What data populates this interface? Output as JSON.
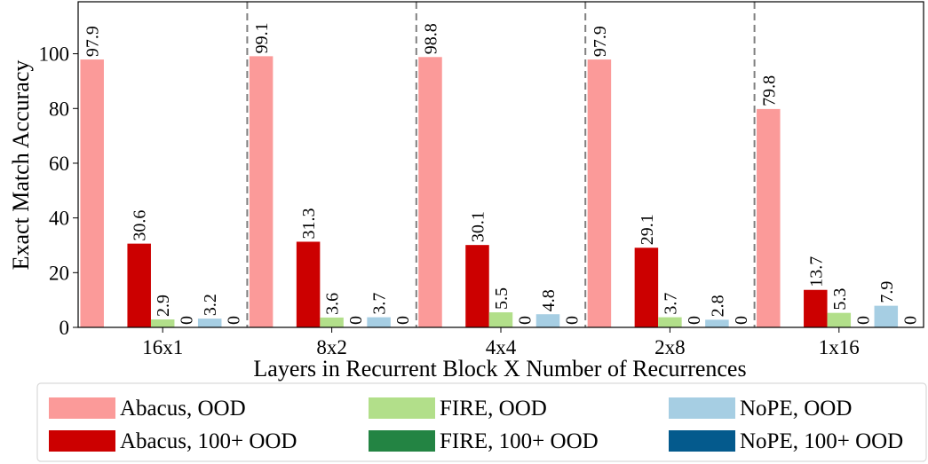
{
  "chart_data": {
    "type": "bar",
    "xlabel": "Layers in Recurrent Block X Number of Recurrences",
    "ylabel": "Exact Match Accuracy",
    "categories": [
      "16x1",
      "8x2",
      "4x4",
      "2x8",
      "1x16"
    ],
    "series": [
      {
        "name": "Abacus, OOD",
        "color": "#fb9a99",
        "values": [
          97.9,
          99.1,
          98.8,
          97.9,
          79.8
        ]
      },
      {
        "name": "Abacus, 100+ OOD",
        "color": "#cc0000",
        "values": [
          30.6,
          31.3,
          30.1,
          29.1,
          13.7
        ]
      },
      {
        "name": "FIRE, OOD",
        "color": "#b2df8a",
        "values": [
          2.9,
          3.6,
          5.5,
          3.7,
          5.3
        ]
      },
      {
        "name": "FIRE, 100+ OOD",
        "color": "#238443",
        "values": [
          0,
          0,
          0,
          0,
          0
        ]
      },
      {
        "name": "NoPE, OOD",
        "color": "#a6cee3",
        "values": [
          3.2,
          3.7,
          4.8,
          2.8,
          7.9
        ]
      },
      {
        "name": "NoPE, 100+ OOD",
        "color": "#045a8d",
        "values": [
          0,
          0,
          0,
          0,
          0
        ]
      }
    ],
    "ylim": [
      0,
      119
    ],
    "yticks": [
      0,
      20,
      40,
      60,
      80,
      100
    ],
    "legend": "bottom"
  }
}
